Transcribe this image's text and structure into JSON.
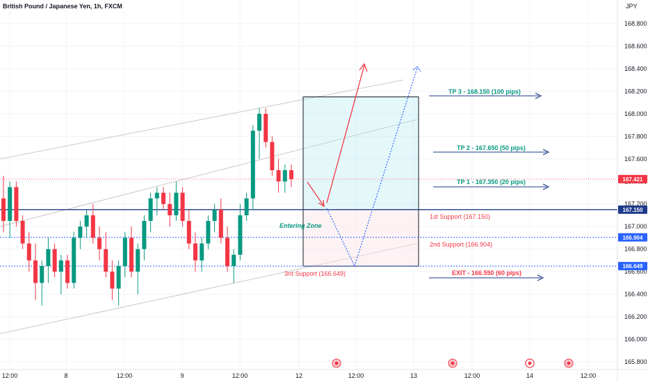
{
  "header": {
    "title": "British Pound / Japanese Yen, 1h, FXCM"
  },
  "chart_data": {
    "type": "candlestick",
    "title": "British Pound / Japanese Yen, 1h, FXCM",
    "ylabel": "JPY",
    "ylim": [
      165.78,
      169.05
    ],
    "y_ticks": [
      "168.800",
      "168.600",
      "168.400",
      "168.200",
      "168.000",
      "167.800",
      "167.600",
      "167.400",
      "167.200",
      "167.000",
      "166.800",
      "166.600",
      "166.400",
      "166.200",
      "166.000",
      "165.800"
    ],
    "x_ticks": [
      "12:00",
      "8",
      "12:00",
      "9",
      "12:00",
      "12",
      "12:00",
      "13",
      "12:00",
      "14",
      "12:00"
    ],
    "price_badges": [
      {
        "value": 167.421,
        "label": "167.421",
        "color": "#f23645"
      },
      {
        "value": 167.15,
        "label": "167.150",
        "color": "#1e3a8a"
      },
      {
        "value": 166.904,
        "label": "166.904",
        "color": "#2962ff"
      },
      {
        "value": 166.649,
        "label": "166.649",
        "color": "#2962ff"
      }
    ],
    "candles": [
      [
        167.25,
        167.45,
        166.95,
        167.05
      ],
      [
        167.05,
        167.4,
        166.9,
        167.35
      ],
      [
        167.35,
        167.4,
        167.0,
        167.05
      ],
      [
        167.05,
        167.1,
        166.8,
        166.85
      ],
      [
        166.85,
        166.95,
        166.6,
        166.7
      ],
      [
        166.7,
        166.85,
        166.35,
        166.5
      ],
      [
        166.5,
        166.7,
        166.3,
        166.65
      ],
      [
        166.65,
        166.9,
        166.5,
        166.8
      ],
      [
        166.8,
        166.85,
        166.55,
        166.6
      ],
      [
        166.6,
        166.75,
        166.4,
        166.7
      ],
      [
        166.7,
        166.75,
        166.45,
        166.5
      ],
      [
        166.5,
        166.95,
        166.45,
        166.9
      ],
      [
        166.9,
        167.05,
        166.8,
        167.0
      ],
      [
        167.0,
        167.15,
        166.9,
        167.1
      ],
      [
        167.1,
        167.2,
        166.85,
        166.9
      ],
      [
        166.9,
        167.0,
        166.7,
        166.8
      ],
      [
        166.8,
        166.95,
        166.55,
        166.6
      ],
      [
        166.6,
        166.7,
        166.35,
        166.45
      ],
      [
        166.45,
        166.7,
        166.3,
        166.65
      ],
      [
        166.65,
        166.95,
        166.55,
        166.9
      ],
      [
        166.9,
        167.0,
        166.55,
        166.6
      ],
      [
        166.6,
        166.85,
        166.4,
        166.8
      ],
      [
        166.8,
        167.1,
        166.7,
        167.05
      ],
      [
        167.05,
        167.3,
        166.95,
        167.25
      ],
      [
        167.25,
        167.35,
        167.1,
        167.3
      ],
      [
        167.3,
        167.35,
        167.15,
        167.2
      ],
      [
        167.2,
        167.3,
        167.0,
        167.1
      ],
      [
        167.1,
        167.4,
        167.05,
        167.3
      ],
      [
        167.3,
        167.35,
        167.0,
        167.05
      ],
      [
        167.05,
        167.15,
        166.8,
        166.85
      ],
      [
        166.85,
        166.95,
        166.6,
        166.7
      ],
      [
        166.7,
        166.9,
        166.6,
        166.85
      ],
      [
        166.85,
        167.1,
        166.8,
        167.05
      ],
      [
        167.05,
        167.2,
        166.95,
        167.15
      ],
      [
        167.15,
        167.25,
        166.85,
        166.9
      ],
      [
        166.9,
        167.0,
        166.6,
        166.65
      ],
      [
        166.65,
        166.8,
        166.5,
        166.75
      ],
      [
        166.75,
        167.2,
        166.7,
        167.1
      ],
      [
        167.1,
        167.3,
        167.05,
        167.25
      ],
      [
        167.25,
        167.9,
        167.15,
        167.85
      ],
      [
        167.85,
        168.05,
        167.6,
        168.0
      ],
      [
        168.0,
        168.05,
        167.7,
        167.75
      ],
      [
        167.75,
        167.8,
        167.45,
        167.5
      ],
      [
        167.5,
        167.6,
        167.3,
        167.4
      ],
      [
        167.4,
        167.55,
        167.3,
        167.5
      ],
      [
        167.5,
        167.55,
        167.35,
        167.421
      ]
    ],
    "channel_lines": [
      {
        "from": [
          0,
          167.6
        ],
        "to": [
          580,
          168.3
        ]
      },
      {
        "from": [
          0,
          167.0
        ],
        "to": [
          600,
          167.95
        ]
      },
      {
        "from": [
          0,
          166.05
        ],
        "to": [
          600,
          166.85
        ]
      }
    ],
    "levels": [
      {
        "name": "1st Support",
        "value": 167.15
      },
      {
        "name": "2nd Support",
        "value": 166.904
      },
      {
        "name": "3rd Support",
        "value": 166.649
      }
    ],
    "annotations": {
      "tp3": "TP 3 - 168.150 (100 pips)",
      "tp2": "TP 2 - 167.650 (50 pips)",
      "tp1": "TP 1 - 167.350 (20 pips)",
      "support1": "1st Support (167.150)",
      "support2": "2nd Support (166.904)",
      "support3": "3rd Support (166.649)",
      "exit": "EXIT - 166.550 (60 pips)",
      "entering": "Entering Zone"
    }
  }
}
